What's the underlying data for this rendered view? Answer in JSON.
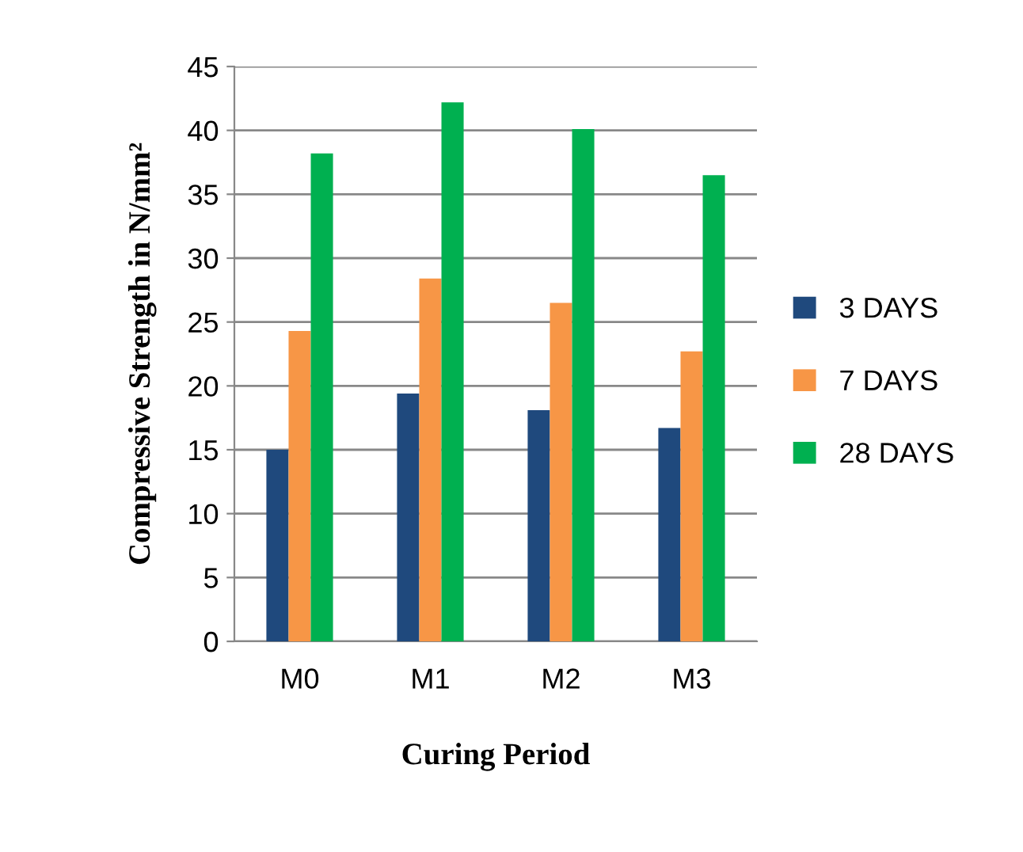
{
  "chart_data": {
    "type": "bar",
    "xlabel": "Curing Period",
    "ylabel": "Compressive Strength in N/mm²",
    "categories": [
      "M0",
      "M1",
      "M2",
      "M3"
    ],
    "series": [
      {
        "name": "3 DAYS",
        "color": "#1f497d",
        "values": [
          15.0,
          19.4,
          18.1,
          16.7
        ]
      },
      {
        "name": "7 DAYS",
        "color": "#f79646",
        "values": [
          24.3,
          28.4,
          26.5,
          22.7
        ]
      },
      {
        "name": "28 DAYS",
        "color": "#00b050",
        "values": [
          38.2,
          42.2,
          40.1,
          36.5
        ]
      }
    ],
    "ylim": [
      0,
      45
    ],
    "yticks": [
      0,
      5,
      10,
      15,
      20,
      25,
      30,
      35,
      40,
      45
    ],
    "grid": "y",
    "legend": "right"
  }
}
